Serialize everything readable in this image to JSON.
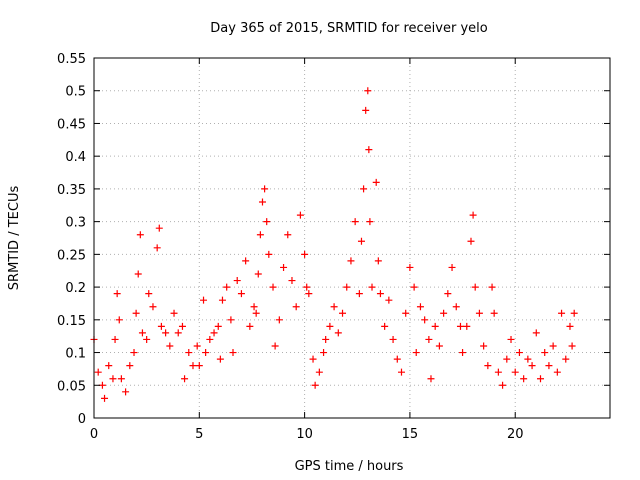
{
  "chart_data": {
    "type": "scatter",
    "title": "Day 365 of 2015, SRMTID for receiver yelo",
    "xlabel": "GPS time / hours",
    "ylabel": "SRMTID / TECUs",
    "xlim": [
      0,
      24.5
    ],
    "ylim": [
      0,
      0.55
    ],
    "xticks": [
      "0",
      "5",
      "10",
      "15",
      "20"
    ],
    "yticks": [
      "0",
      "0.05",
      "0.1",
      "0.15",
      "0.2",
      "0.25",
      "0.3",
      "0.35",
      "0.4",
      "0.45",
      "0.5",
      "0.55"
    ],
    "grid": true,
    "marker": "plus",
    "marker_color": "#ff0000",
    "series": [
      {
        "name": "yelo",
        "points": [
          [
            0.0,
            0.12
          ],
          [
            0.2,
            0.07
          ],
          [
            0.4,
            0.05
          ],
          [
            0.5,
            0.03
          ],
          [
            0.7,
            0.08
          ],
          [
            0.9,
            0.06
          ],
          [
            1.0,
            0.12
          ],
          [
            1.1,
            0.19
          ],
          [
            1.2,
            0.15
          ],
          [
            1.3,
            0.06
          ],
          [
            1.5,
            0.04
          ],
          [
            1.7,
            0.08
          ],
          [
            1.9,
            0.1
          ],
          [
            2.0,
            0.16
          ],
          [
            2.1,
            0.22
          ],
          [
            2.2,
            0.28
          ],
          [
            2.3,
            0.13
          ],
          [
            2.5,
            0.12
          ],
          [
            2.6,
            0.19
          ],
          [
            2.8,
            0.17
          ],
          [
            3.0,
            0.26
          ],
          [
            3.1,
            0.29
          ],
          [
            3.2,
            0.14
          ],
          [
            3.4,
            0.13
          ],
          [
            3.6,
            0.11
          ],
          [
            3.8,
            0.16
          ],
          [
            4.0,
            0.13
          ],
          [
            4.2,
            0.14
          ],
          [
            4.3,
            0.06
          ],
          [
            4.5,
            0.1
          ],
          [
            4.7,
            0.08
          ],
          [
            4.9,
            0.11
          ],
          [
            5.0,
            0.08
          ],
          [
            5.2,
            0.18
          ],
          [
            5.3,
            0.1
          ],
          [
            5.5,
            0.12
          ],
          [
            5.7,
            0.13
          ],
          [
            5.9,
            0.14
          ],
          [
            6.0,
            0.09
          ],
          [
            6.1,
            0.18
          ],
          [
            6.3,
            0.2
          ],
          [
            6.5,
            0.15
          ],
          [
            6.6,
            0.1
          ],
          [
            6.8,
            0.21
          ],
          [
            7.0,
            0.19
          ],
          [
            7.2,
            0.24
          ],
          [
            7.4,
            0.14
          ],
          [
            7.6,
            0.17
          ],
          [
            7.7,
            0.16
          ],
          [
            7.8,
            0.22
          ],
          [
            7.9,
            0.28
          ],
          [
            8.0,
            0.33
          ],
          [
            8.1,
            0.35
          ],
          [
            8.2,
            0.3
          ],
          [
            8.3,
            0.25
          ],
          [
            8.5,
            0.2
          ],
          [
            8.6,
            0.11
          ],
          [
            8.8,
            0.15
          ],
          [
            9.0,
            0.23
          ],
          [
            9.2,
            0.28
          ],
          [
            9.4,
            0.21
          ],
          [
            9.6,
            0.17
          ],
          [
            9.8,
            0.31
          ],
          [
            10.0,
            0.25
          ],
          [
            10.1,
            0.2
          ],
          [
            10.2,
            0.19
          ],
          [
            10.4,
            0.09
          ],
          [
            10.5,
            0.05
          ],
          [
            10.7,
            0.07
          ],
          [
            10.9,
            0.1
          ],
          [
            11.0,
            0.12
          ],
          [
            11.2,
            0.14
          ],
          [
            11.4,
            0.17
          ],
          [
            11.6,
            0.13
          ],
          [
            11.8,
            0.16
          ],
          [
            12.0,
            0.2
          ],
          [
            12.2,
            0.24
          ],
          [
            12.4,
            0.3
          ],
          [
            12.6,
            0.19
          ],
          [
            12.7,
            0.27
          ],
          [
            12.8,
            0.35
          ],
          [
            12.9,
            0.47
          ],
          [
            13.0,
            0.5
          ],
          [
            13.05,
            0.41
          ],
          [
            13.1,
            0.3
          ],
          [
            13.2,
            0.2
          ],
          [
            13.4,
            0.36
          ],
          [
            13.5,
            0.24
          ],
          [
            13.6,
            0.19
          ],
          [
            13.8,
            0.14
          ],
          [
            14.0,
            0.18
          ],
          [
            14.2,
            0.12
          ],
          [
            14.4,
            0.09
          ],
          [
            14.6,
            0.07
          ],
          [
            14.8,
            0.16
          ],
          [
            15.0,
            0.23
          ],
          [
            15.2,
            0.2
          ],
          [
            15.3,
            0.1
          ],
          [
            15.5,
            0.17
          ],
          [
            15.7,
            0.15
          ],
          [
            15.9,
            0.12
          ],
          [
            16.0,
            0.06
          ],
          [
            16.2,
            0.14
          ],
          [
            16.4,
            0.11
          ],
          [
            16.6,
            0.16
          ],
          [
            16.8,
            0.19
          ],
          [
            17.0,
            0.23
          ],
          [
            17.2,
            0.17
          ],
          [
            17.4,
            0.14
          ],
          [
            17.5,
            0.1
          ],
          [
            17.7,
            0.14
          ],
          [
            17.9,
            0.27
          ],
          [
            18.0,
            0.31
          ],
          [
            18.1,
            0.2
          ],
          [
            18.3,
            0.16
          ],
          [
            18.5,
            0.11
          ],
          [
            18.7,
            0.08
          ],
          [
            18.9,
            0.2
          ],
          [
            19.0,
            0.16
          ],
          [
            19.2,
            0.07
          ],
          [
            19.4,
            0.05
          ],
          [
            19.6,
            0.09
          ],
          [
            19.8,
            0.12
          ],
          [
            20.0,
            0.07
          ],
          [
            20.2,
            0.1
          ],
          [
            20.4,
            0.06
          ],
          [
            20.6,
            0.09
          ],
          [
            20.8,
            0.08
          ],
          [
            21.0,
            0.13
          ],
          [
            21.2,
            0.06
          ],
          [
            21.4,
            0.1
          ],
          [
            21.6,
            0.08
          ],
          [
            21.8,
            0.11
          ],
          [
            22.0,
            0.07
          ],
          [
            22.2,
            0.16
          ],
          [
            22.4,
            0.09
          ],
          [
            22.6,
            0.14
          ],
          [
            22.7,
            0.11
          ],
          [
            22.8,
            0.16
          ]
        ]
      }
    ]
  }
}
